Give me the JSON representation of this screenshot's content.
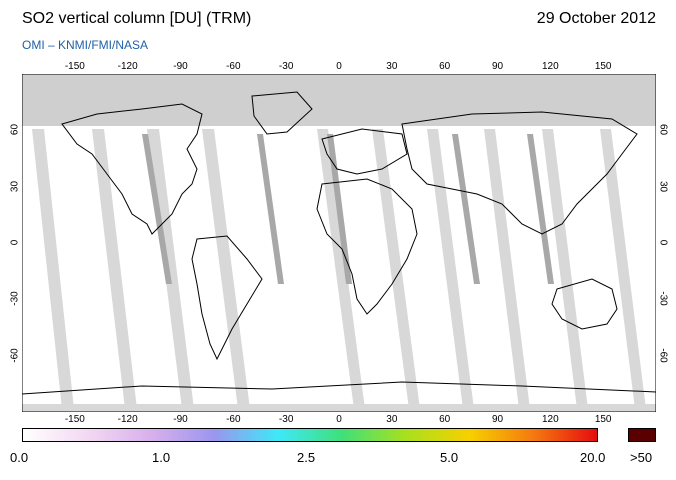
{
  "header": {
    "title": "SO2 vertical column [DU] (TRM)",
    "date": "29 October 2012",
    "credit": "OMI  –  KNMI/FMI/NASA"
  },
  "map": {
    "lon_ticks": [
      "-150",
      "-120",
      "-90",
      "-60",
      "-30",
      "0",
      "30",
      "60",
      "90",
      "120",
      "150"
    ],
    "lat_ticks": [
      "60",
      "30",
      "0",
      "-30",
      "-60"
    ],
    "lon_range": [
      -180,
      180
    ],
    "lat_range": [
      -90,
      90
    ],
    "colors": {
      "no_data": "#cfcfcf",
      "orbit_gap": "#d8d8d8",
      "orbit_gap_dark": "#a8a8a8",
      "coast": "#000000"
    }
  },
  "colorbar": {
    "labels": [
      "0.0",
      "1.0",
      "2.5",
      "5.0",
      "20.0"
    ],
    "over_label": ">50",
    "stops": [
      "#ffffff",
      "#f3d9f3",
      "#d9b0ec",
      "#9a96ee",
      "#3fe8f7",
      "#3fe07a",
      "#a8e01e",
      "#f7d000",
      "#f57a10",
      "#e60c10"
    ],
    "over_color": "#5a0000"
  }
}
